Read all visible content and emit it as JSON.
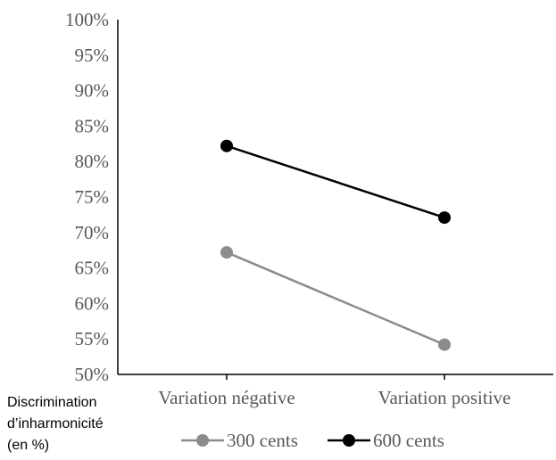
{
  "chart_data": {
    "type": "line",
    "categories": [
      "Variation négative",
      "Variation positive"
    ],
    "series": [
      {
        "name": "300 cents",
        "values": [
          67.2,
          54.2
        ],
        "color": "#8c8c8c"
      },
      {
        "name": "600 cents",
        "values": [
          82.2,
          72.1
        ],
        "color": "#000000"
      }
    ],
    "ylim": [
      50,
      100
    ],
    "yticks": [
      "50%",
      "55%",
      "60%",
      "65%",
      "70%",
      "75%",
      "80%",
      "85%",
      "90%",
      "95%",
      "100%"
    ],
    "ylabel_lines": [
      "Discrimination",
      "d’inharmonicité",
      "(en %)"
    ],
    "legend_position": "bottom",
    "grid": false
  }
}
